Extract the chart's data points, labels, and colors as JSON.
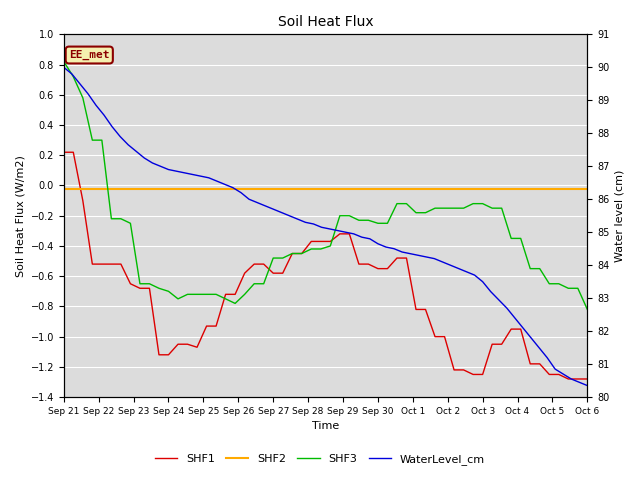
{
  "title": "Soil Heat Flux",
  "xlabel": "Time",
  "ylabel_left": "Soil Heat Flux (W/m2)",
  "ylabel_right": "Water level (cm)",
  "ylim_left": [
    -1.4,
    1.0
  ],
  "ylim_right": [
    80.0,
    91.0
  ],
  "yticks_left": [
    -1.4,
    -1.2,
    -1.0,
    -0.8,
    -0.6,
    -0.4,
    -0.2,
    0.0,
    0.2,
    0.4,
    0.6,
    0.8,
    1.0
  ],
  "yticks_right": [
    80.0,
    81.0,
    82.0,
    83.0,
    84.0,
    85.0,
    86.0,
    87.0,
    88.0,
    89.0,
    90.0,
    91.0
  ],
  "annotation_text": "EE_met",
  "annotation_color": "#8B0000",
  "annotation_bg": "#f5f0b0",
  "plot_bg": "#dcdcdc",
  "fig_bg": "#ffffff",
  "grid_color": "#ffffff",
  "colors": {
    "SHF1": "#dd0000",
    "SHF2": "#ffaa00",
    "SHF3": "#00bb00",
    "WaterLevel_cm": "#0000dd"
  },
  "xtick_labels": [
    "Sep 21",
    "Sep 22",
    "Sep 23",
    "Sep 24",
    "Sep 25",
    "Sep 26",
    "Sep 27",
    "Sep 28",
    "Sep 29",
    "Sep 30",
    "Oct 1",
    "Oct 2",
    "Oct 3",
    "Oct 4",
    "Oct 5",
    "Oct 6"
  ],
  "SHF1": [
    0.22,
    0.22,
    -0.1,
    -0.52,
    -0.52,
    -0.52,
    -0.52,
    -0.65,
    -0.68,
    -0.68,
    -1.12,
    -1.12,
    -1.05,
    -1.05,
    -1.07,
    -0.93,
    -0.93,
    -0.72,
    -0.72,
    -0.58,
    -0.52,
    -0.52,
    -0.58,
    -0.58,
    -0.45,
    -0.45,
    -0.37,
    -0.37,
    -0.37,
    -0.32,
    -0.32,
    -0.52,
    -0.52,
    -0.55,
    -0.55,
    -0.48,
    -0.48,
    -0.82,
    -0.82,
    -1.0,
    -1.0,
    -1.22,
    -1.22,
    -1.25,
    -1.25,
    -1.05,
    -1.05,
    -0.95,
    -0.95,
    -1.18,
    -1.18,
    -1.25,
    -1.25,
    -1.28,
    -1.28,
    -1.28
  ],
  "SHF2_val": -0.02,
  "SHF3": [
    0.82,
    0.72,
    0.58,
    0.3,
    0.3,
    -0.22,
    -0.22,
    -0.25,
    -0.65,
    -0.65,
    -0.68,
    -0.7,
    -0.75,
    -0.72,
    -0.72,
    -0.72,
    -0.72,
    -0.75,
    -0.78,
    -0.72,
    -0.65,
    -0.65,
    -0.48,
    -0.48,
    -0.45,
    -0.45,
    -0.42,
    -0.42,
    -0.4,
    -0.2,
    -0.2,
    -0.23,
    -0.23,
    -0.25,
    -0.25,
    -0.12,
    -0.12,
    -0.18,
    -0.18,
    -0.15,
    -0.15,
    -0.15,
    -0.15,
    -0.12,
    -0.12,
    -0.15,
    -0.15,
    -0.35,
    -0.35,
    -0.55,
    -0.55,
    -0.65,
    -0.65,
    -0.68,
    -0.68,
    -0.82
  ],
  "WaterLevel": [
    90.0,
    89.8,
    89.5,
    89.2,
    88.85,
    88.55,
    88.2,
    87.9,
    87.65,
    87.45,
    87.25,
    87.1,
    87.0,
    86.9,
    86.85,
    86.8,
    86.75,
    86.7,
    86.65,
    86.55,
    86.45,
    86.35,
    86.2,
    86.0,
    85.9,
    85.8,
    85.7,
    85.6,
    85.5,
    85.4,
    85.3,
    85.25,
    85.15,
    85.1,
    85.05,
    85.0,
    84.95,
    84.85,
    84.8,
    84.65,
    84.55,
    84.5,
    84.4,
    84.35,
    84.3,
    84.25,
    84.2,
    84.1,
    84.0,
    83.9,
    83.8,
    83.7,
    83.5,
    83.2,
    82.95,
    82.7,
    82.4,
    82.1,
    81.8,
    81.5,
    81.2,
    80.85,
    80.7,
    80.55,
    80.45,
    80.35
  ]
}
